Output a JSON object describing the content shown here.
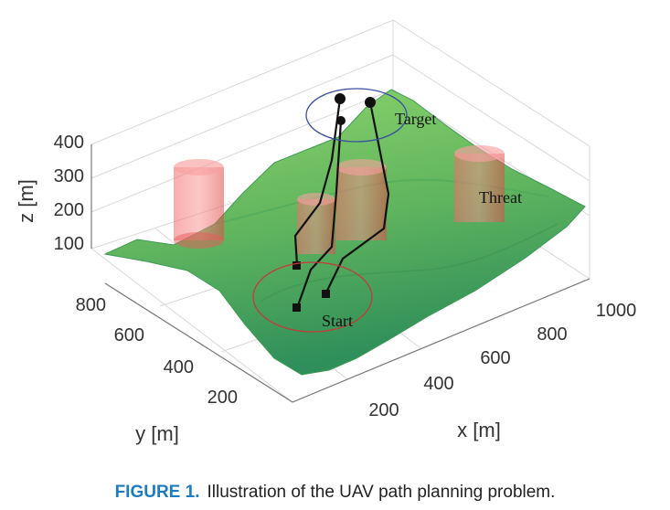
{
  "figure": {
    "axes": {
      "x_label": "x [m]",
      "y_label": "y [m]",
      "z_label": "z [m]",
      "x_ticks": [
        "200",
        "400",
        "600",
        "800",
        "1000"
      ],
      "y_ticks": [
        "200",
        "400",
        "600",
        "800"
      ],
      "z_ticks": [
        "100",
        "200",
        "300",
        "400"
      ]
    },
    "annotations": {
      "target": "Target",
      "threat": "Threat",
      "start": "Start"
    },
    "colors": {
      "terrain_high": "#8cd36a",
      "terrain_low": "#2f8f5a",
      "threat": "#f05050",
      "path": "#111111",
      "target_ellipse": "#3a4fa0",
      "start_ellipse": "#c43a3a"
    }
  },
  "caption": {
    "label": "FIGURE 1.",
    "text": "Illustration of the UAV path planning problem."
  }
}
